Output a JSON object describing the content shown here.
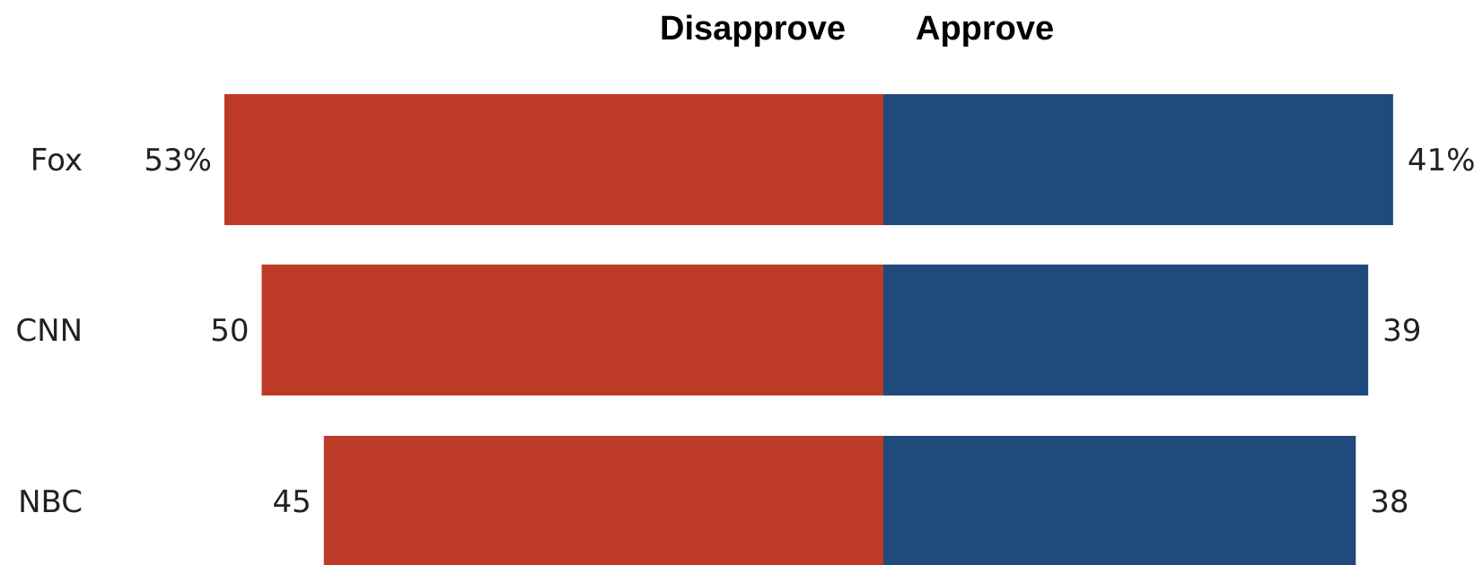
{
  "chart_data": {
    "type": "bar",
    "orientation": "horizontal-diverging",
    "title": "",
    "xlabel": "",
    "ylabel": "",
    "categories": [
      "Fox",
      "CNN",
      "NBC"
    ],
    "series": [
      {
        "name": "Disapprove",
        "values": [
          53,
          50,
          45
        ],
        "color": "#BE3A28",
        "direction": "left"
      },
      {
        "name": "Approve",
        "values": [
          41,
          39,
          38
        ],
        "color": "#204A7C",
        "direction": "right"
      }
    ],
    "value_labels": {
      "Disapprove": [
        "53%",
        "50",
        "45"
      ],
      "Approve": [
        "41%",
        "39",
        "38"
      ]
    },
    "xlim": [
      0,
      53
    ],
    "grid": false,
    "legend": "top-center, column headers"
  }
}
